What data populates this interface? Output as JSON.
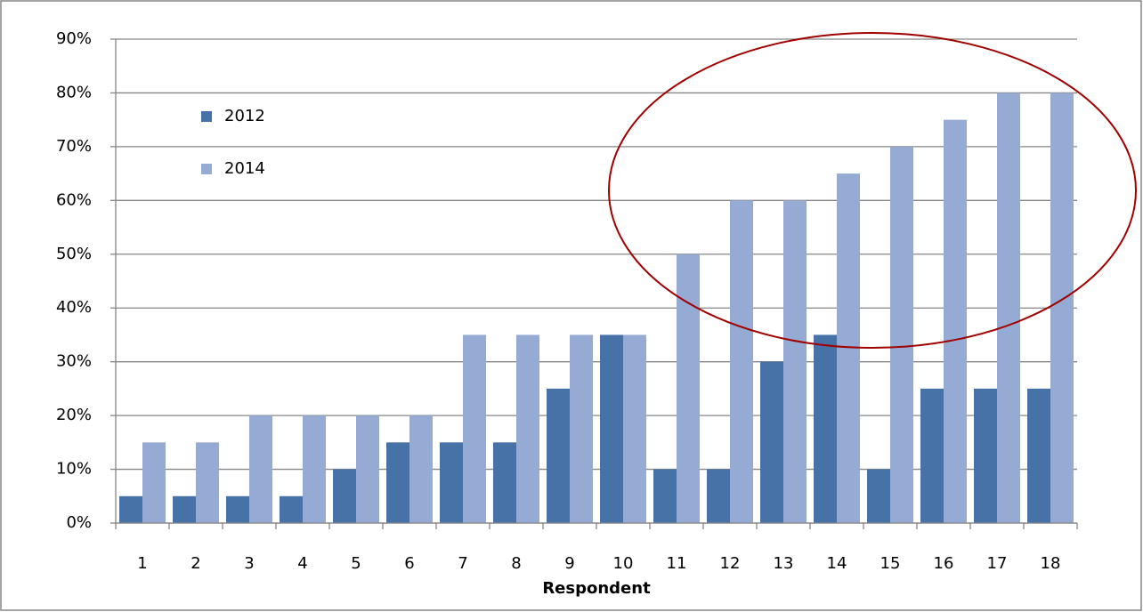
{
  "chart_data": {
    "type": "bar",
    "x_label": "Respondent",
    "categories": [
      "1",
      "2",
      "3",
      "4",
      "5",
      "6",
      "7",
      "8",
      "9",
      "10",
      "11",
      "12",
      "13",
      "14",
      "15",
      "16",
      "17",
      "18"
    ],
    "series": [
      {
        "name": "2012",
        "color": "#4672a8",
        "values": [
          5,
          5,
          5,
          5,
          10,
          15,
          15,
          15,
          25,
          35,
          10,
          10,
          30,
          35,
          10,
          25,
          25,
          25
        ]
      },
      {
        "name": "2014",
        "color": "#95abd3",
        "values": [
          15,
          15,
          20,
          20,
          20,
          20,
          35,
          35,
          35,
          35,
          50,
          60,
          60,
          65,
          70,
          75,
          80,
          80
        ]
      }
    ],
    "ylim": [
      0,
      90
    ],
    "yticks": [
      {
        "value": 0,
        "label": "0%"
      },
      {
        "value": 10,
        "label": "10%"
      },
      {
        "value": 20,
        "label": "20%"
      },
      {
        "value": 30,
        "label": "30%"
      },
      {
        "value": 40,
        "label": "40%"
      },
      {
        "value": 50,
        "label": "50%"
      },
      {
        "value": 60,
        "label": "60%"
      },
      {
        "value": 70,
        "label": "70%"
      },
      {
        "value": 80,
        "label": "80%"
      },
      {
        "value": 90,
        "label": "90%"
      }
    ],
    "grid": true,
    "legend": "upper left"
  }
}
